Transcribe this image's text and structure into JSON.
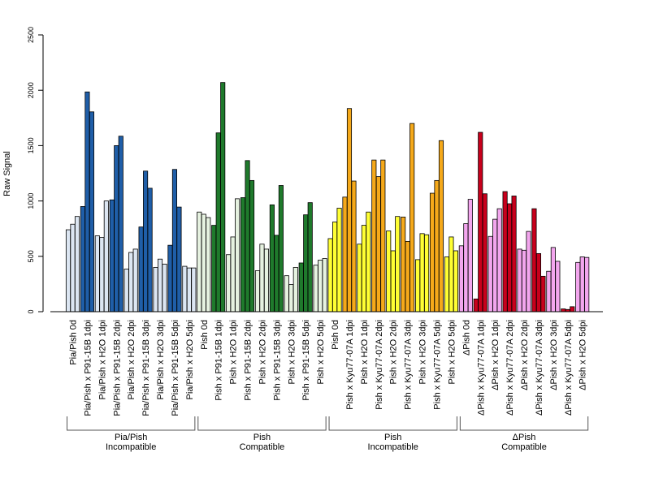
{
  "chart_data": {
    "type": "bar",
    "title": "",
    "xlabel": "",
    "ylabel": "Raw Signal",
    "ylim": [
      0,
      2500
    ],
    "yticks": [
      0,
      500,
      1000,
      1500,
      2000,
      2500
    ],
    "grid": false,
    "legend": "none",
    "categories": [
      "Pia/Pish 0d",
      "Pia/Pish x P91-15B 1dpi",
      "Pia/Pish x H2O 1dpi",
      "Pia/Pish x P91-15B 2dpi",
      "Pia/Pish x H2O 2dpi",
      "Pia/Pish x P91-15B 3dpi",
      "Pia/Pish x H2O 3dpi",
      "Pia/Pish x P91-15B 5dpi",
      "Pia/Pish x H2O 5dpi",
      "Pish 0d",
      "Pish x P91-15B 1dpi",
      "Pish x H2O 1dpi",
      "Pish x P91-15B 2dpi",
      "Pish x H2O 2dpi",
      "Pish x P91-15B 3dpi",
      "Pish x H2O 3dpi",
      "Pish x P91-15B 5dpi",
      "Pish x H2O 5dpi",
      "Pish 0d",
      "Pish x Kyu77-07A 1dpi",
      "Pish x H2O 1dpi",
      "Pish x Kyu77-07A 2dpi",
      "Pish x H2O 2dpi",
      "Pish x Kyu77-07A 3dpi",
      "Pish x H2O 3dpi",
      "Pish x Kyu77-07A 5dpi",
      "Pish x H2O 5dpi",
      "ΔPish 0d",
      "ΔPish x Kyu77-07A 1dpi",
      "ΔPish x H2O 1dpi",
      "ΔPish x Kyu77-07A 2dpi",
      "ΔPish x H2O 2dpi",
      "ΔPish x Kyu77-07A 3dpi",
      "ΔPish x H2O 3dpi",
      "ΔPish x Kyu77-07A 5dpi",
      "ΔPish x H2O 5dpi"
    ],
    "replicates": [
      [
        740,
        790,
        860
      ],
      [
        950,
        1985,
        1805
      ],
      [
        685,
        670,
        1000
      ],
      [
        1010,
        1500,
        1585
      ],
      [
        385,
        535,
        565
      ],
      [
        765,
        1270,
        1115
      ],
      [
        400,
        475,
        430
      ],
      [
        600,
        1285,
        945
      ],
      [
        410,
        395,
        395
      ],
      [
        900,
        880,
        850
      ],
      [
        780,
        1615,
        2070
      ],
      [
        515,
        675,
        1020
      ],
      [
        1030,
        1365,
        1185
      ],
      [
        370,
        610,
        565
      ],
      [
        965,
        690,
        1140
      ],
      [
        325,
        245,
        400
      ],
      [
        440,
        875,
        985
      ],
      [
        420,
        465,
        480
      ],
      [
        660,
        810,
        935
      ],
      [
        1035,
        1835,
        1180
      ],
      [
        610,
        780,
        900
      ],
      [
        1370,
        1220,
        1370
      ],
      [
        730,
        550,
        860
      ],
      [
        855,
        635,
        1700
      ],
      [
        470,
        705,
        695
      ],
      [
        1070,
        1185,
        1545
      ],
      [
        495,
        675,
        550
      ],
      [
        595,
        795,
        1015
      ],
      [
        115,
        1620,
        1065
      ],
      [
        680,
        835,
        930
      ],
      [
        1085,
        975,
        1045
      ],
      [
        565,
        555,
        725
      ],
      [
        930,
        525,
        320
      ],
      [
        365,
        580,
        455
      ],
      [
        25,
        20,
        45
      ],
      [
        445,
        495,
        490
      ]
    ],
    "bar_colors": [
      "#dce6f2",
      "#1f5ea8",
      "#dce6f2",
      "#1f5ea8",
      "#dce6f2",
      "#1f5ea8",
      "#dce6f2",
      "#1f5ea8",
      "#dce6f2",
      "#e6f2e0",
      "#1f7a2c",
      "#e6f2e0",
      "#1f7a2c",
      "#e6f2e0",
      "#1f7a2c",
      "#e6f2e0",
      "#1f7a2c",
      "#e6f2e0",
      "#ffff33",
      "#f5a91a",
      "#ffff33",
      "#f5a91a",
      "#ffff33",
      "#f5a91a",
      "#ffff33",
      "#f5a91a",
      "#ffff33",
      "#f3a6ee",
      "#c8001c",
      "#f3a6ee",
      "#c8001c",
      "#f3a6ee",
      "#c8001c",
      "#f3a6ee",
      "#c8001c",
      "#f3a6ee"
    ],
    "groups": [
      {
        "line1": "Pia/Pish",
        "line2": "Incompatible",
        "start": 0,
        "end": 8
      },
      {
        "line1": "Pish",
        "line2": "Compatible",
        "start": 9,
        "end": 17
      },
      {
        "line1": "Pish",
        "line2": "Incompatible",
        "start": 18,
        "end": 26
      },
      {
        "line1": "ΔPish",
        "line2": "Compatible",
        "start": 27,
        "end": 35
      }
    ]
  }
}
